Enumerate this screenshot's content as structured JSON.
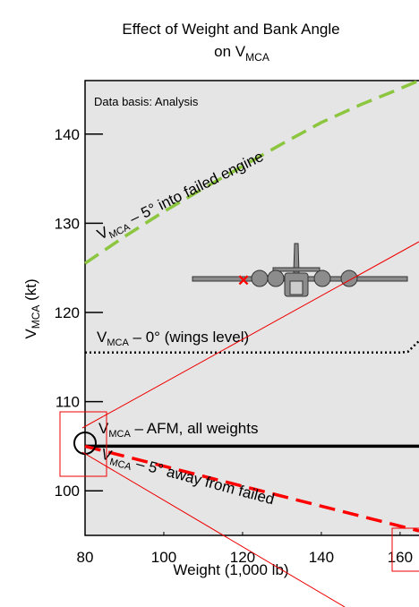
{
  "chart_data": {
    "type": "line",
    "title_parts": [
      "Effect of Weight and Bank Angle",
      "on V",
      "MCA"
    ],
    "x_label": "Weight  (1,000 lb)",
    "y_label_parts": [
      "V",
      "MCA",
      " (kt)"
    ],
    "annotation": "Data basis: Analysis",
    "xlim": [
      80,
      164.8
    ],
    "xticks": [
      80,
      100,
      120,
      140,
      160
    ],
    "ylim": [
      95,
      146
    ],
    "yticks": [
      100,
      110,
      120,
      130,
      140
    ],
    "series": [
      {
        "name_parts": [
          "V",
          "MCA",
          " – 5° into failed engine"
        ],
        "color": "#8cc63f",
        "style": "dashed",
        "x": [
          80,
          90,
          100,
          110,
          120,
          130,
          140,
          150,
          160,
          164.8
        ],
        "values": [
          125.5,
          128.5,
          131.3,
          133.9,
          136.4,
          138.9,
          141.3,
          143.3,
          145.1,
          146
        ]
      },
      {
        "name_parts": [
          "V",
          "MCA",
          " – 0° (wings level)"
        ],
        "color": "#000000",
        "style": "dotted",
        "x": [
          80,
          100,
          120,
          140,
          160,
          162,
          164.8
        ],
        "values": [
          115.5,
          115.5,
          115.5,
          115.5,
          115.5,
          115.6,
          116.8
        ]
      },
      {
        "name_parts": [
          "V",
          "MCA",
          " – AFM, all weights"
        ],
        "color": "#000000",
        "style": "solid",
        "x": [
          80,
          164.8
        ],
        "values": [
          105,
          105
        ]
      },
      {
        "name_parts": [
          "V",
          "MCA",
          " – 5° away from failed"
        ],
        "color": "#ff0000",
        "style": "dashed",
        "x": [
          80,
          164.8
        ],
        "values": [
          105,
          95.5
        ]
      }
    ]
  }
}
